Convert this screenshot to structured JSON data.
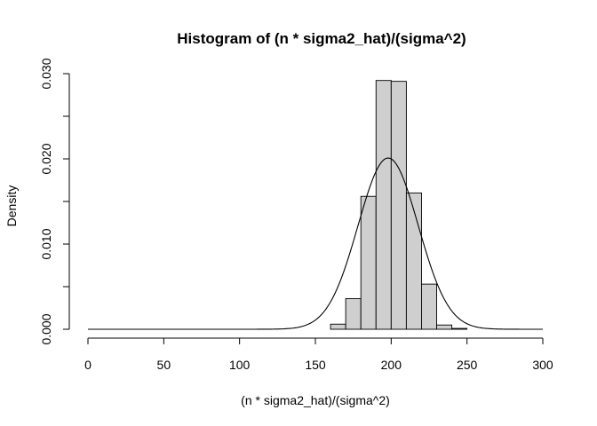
{
  "chart_data": {
    "type": "bar",
    "title": "Histogram of (n * sigma2_hat)/(sigma^2)",
    "xlabel": "(n * sigma2_hat)/(sigma^2)",
    "ylabel": "Density",
    "xlim": [
      0,
      300
    ],
    "ylim": [
      0,
      0.03
    ],
    "x_ticks": [
      "0",
      "50",
      "100",
      "150",
      "200",
      "250",
      "300"
    ],
    "y_ticks": [
      "0.000",
      "0.010",
      "0.020",
      "0.030"
    ],
    "bin_width": 10,
    "bins": [
      {
        "start": 160,
        "end": 170,
        "density": 0.0006
      },
      {
        "start": 170,
        "end": 180,
        "density": 0.0036
      },
      {
        "start": 180,
        "end": 190,
        "density": 0.0156
      },
      {
        "start": 190,
        "end": 200,
        "density": 0.0292
      },
      {
        "start": 200,
        "end": 210,
        "density": 0.0291
      },
      {
        "start": 210,
        "end": 220,
        "density": 0.016
      },
      {
        "start": 220,
        "end": 230,
        "density": 0.0053
      },
      {
        "start": 230,
        "end": 240,
        "density": 0.0005
      },
      {
        "start": 240,
        "end": 250,
        "density": 0.0001
      }
    ],
    "overlay_curve": {
      "type": "line",
      "x_range": [
        0,
        300
      ],
      "peak_x": 198,
      "peak_density": 0.0201
    },
    "grid": false,
    "legend": "none"
  }
}
